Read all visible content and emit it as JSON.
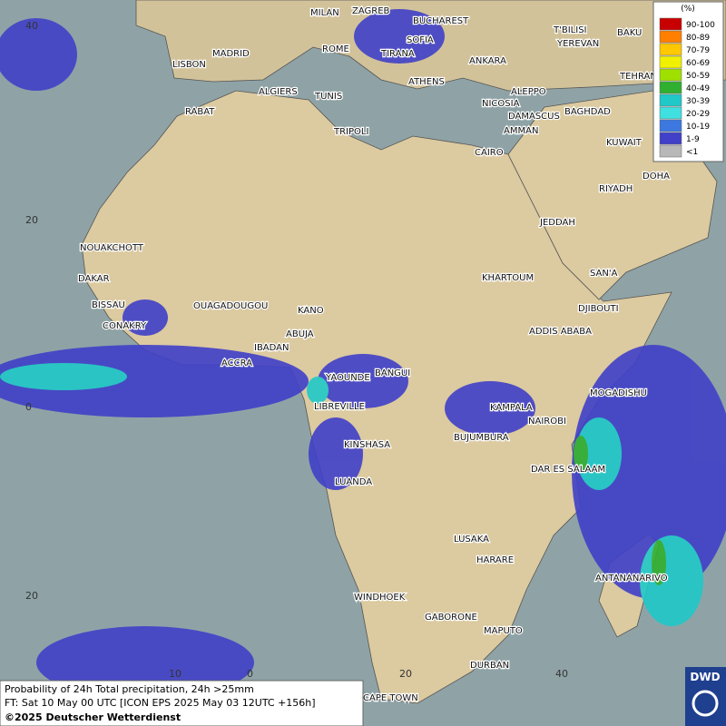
{
  "legend": {
    "title": "(%)",
    "items": [
      {
        "label": "90-100",
        "color": "#c80000"
      },
      {
        "label": "80-89",
        "color": "#ff8000"
      },
      {
        "label": "70-79",
        "color": "#ffc800"
      },
      {
        "label": "60-69",
        "color": "#f0f000"
      },
      {
        "label": "50-59",
        "color": "#a0e000"
      },
      {
        "label": "40-49",
        "color": "#30b030"
      },
      {
        "label": "30-39",
        "color": "#20c8c8"
      },
      {
        "label": "20-29",
        "color": "#40e0e0"
      },
      {
        "label": "10-19",
        "color": "#3c78e0"
      },
      {
        "label": "1-9",
        "color": "#4040c8"
      },
      {
        "label": "<1",
        "color": "#b8b8b8"
      }
    ]
  },
  "grid_labels": {
    "left": [
      "40",
      "20",
      "0",
      "20"
    ],
    "bottom": [
      "10",
      "0",
      "20",
      "40"
    ]
  },
  "cities": [
    "MILAN",
    "ZAGREB",
    "BUCHAREST",
    "ROME",
    "SOFIA",
    "MADRID",
    "LISBON",
    "TIRANA",
    "ANKARA",
    "ATHENS",
    "ALGIERS",
    "TUNIS",
    "RABAT",
    "TRIPOLI",
    "NICOSIA",
    "ALEPPO",
    "DAMASCUS",
    "BAGHDAD",
    "AMMAN",
    "CAIRO",
    "T'BILISI",
    "BAKU",
    "YEREVAN",
    "TEHRAN",
    "KUWAIT",
    "DOHA",
    "RIYADH",
    "JEDDAH",
    "NOUAKCHOTT",
    "DAKAR",
    "BISSAU",
    "CONAKRY",
    "OUAGADOUGOU",
    "KANO",
    "ABUJA",
    "IBADAN",
    "ACCRA",
    "KHARTOUM",
    "SAN'A",
    "DJIBOUTI",
    "ADDIS ABABA",
    "BANGUI",
    "YAOUNDE",
    "MOGADISHU",
    "LIBREVILLE",
    "KAMPALA",
    "NAIROBI",
    "BUJUMBURA",
    "KINSHASA",
    "DAR ES SALAAM",
    "LUANDA",
    "LUSAKA",
    "HARARE",
    "ANTANANARIVO",
    "WINDHOEK",
    "GABORONE",
    "MAPUTO",
    "DURBAN",
    "CAPE TOWN"
  ],
  "caption": {
    "line1": "Probability of 24h Total precipitation, 24h >25mm",
    "line2": "FT: Sat 10 May 00 UTC [ICON EPS 2025 May 03 12UTC +156h]",
    "line3": "©2025 Deutscher Wetterdienst"
  },
  "logo": "DWD"
}
